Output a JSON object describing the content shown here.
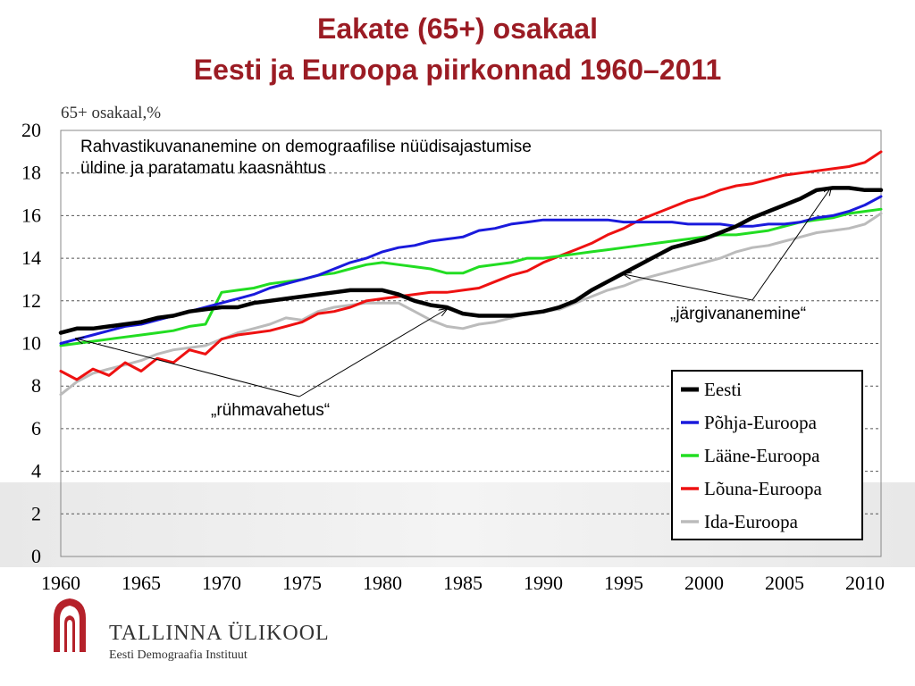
{
  "slide": {
    "title_line1": "Eakate (65+) osakaal",
    "title_line2": "Eesti ja Euroopa piirkonnad  1960–2011"
  },
  "footer": {
    "institution": "TALLINNA ÜLIKOOL",
    "department": "Eesti Demograafia Instituut",
    "logo_icon": "university-arch-logo"
  },
  "chart_data": {
    "type": "line",
    "ylabel": "65+ osakaal,%",
    "xlim": [
      1960,
      2011
    ],
    "ylim": [
      0,
      20
    ],
    "x_ticks": [
      1960,
      1965,
      1970,
      1975,
      1980,
      1985,
      1990,
      1995,
      2000,
      2005,
      2010
    ],
    "y_ticks": [
      0,
      2,
      4,
      6,
      8,
      10,
      12,
      14,
      16,
      18,
      20
    ],
    "grid": "horizontal-dashed",
    "legend_position": "bottom-right",
    "annotations": {
      "note": "Rahvastikuvananemine on demograafilise nüüdisajastumise üldine ja paratamatu kaasnähtus",
      "group_change": "„rühmavahetus“",
      "catch_up": "„järgivananemine“"
    },
    "series": [
      {
        "name": "Eesti",
        "color": "#000000",
        "x": [
          1960,
          1961,
          1962,
          1963,
          1964,
          1965,
          1966,
          1967,
          1968,
          1969,
          1970,
          1971,
          1972,
          1973,
          1974,
          1975,
          1976,
          1977,
          1978,
          1979,
          1980,
          1981,
          1982,
          1983,
          1984,
          1985,
          1986,
          1987,
          1988,
          1989,
          1990,
          1991,
          1992,
          1993,
          1994,
          1995,
          1996,
          1997,
          1998,
          1999,
          2000,
          2001,
          2002,
          2003,
          2004,
          2005,
          2006,
          2007,
          2008,
          2009,
          2010,
          2011
        ],
        "y": [
          10.5,
          10.7,
          10.7,
          10.8,
          10.9,
          11.0,
          11.2,
          11.3,
          11.5,
          11.6,
          11.7,
          11.7,
          11.9,
          12.0,
          12.1,
          12.2,
          12.3,
          12.4,
          12.5,
          12.5,
          12.5,
          12.3,
          12.0,
          11.8,
          11.7,
          11.4,
          11.3,
          11.3,
          11.3,
          11.4,
          11.5,
          11.7,
          12.0,
          12.5,
          12.9,
          13.3,
          13.7,
          14.1,
          14.5,
          14.7,
          14.9,
          15.2,
          15.5,
          15.9,
          16.2,
          16.5,
          16.8,
          17.2,
          17.3,
          17.3,
          17.2,
          17.2
        ]
      },
      {
        "name": "Põhja-Euroopa",
        "color": "#1a1adc",
        "x": [
          1960,
          1961,
          1962,
          1963,
          1964,
          1965,
          1966,
          1967,
          1968,
          1969,
          1970,
          1971,
          1972,
          1973,
          1974,
          1975,
          1976,
          1977,
          1978,
          1979,
          1980,
          1981,
          1982,
          1983,
          1984,
          1985,
          1986,
          1987,
          1988,
          1989,
          1990,
          1991,
          1992,
          1993,
          1994,
          1995,
          1996,
          1997,
          1998,
          1999,
          2000,
          2001,
          2002,
          2003,
          2004,
          2005,
          2006,
          2007,
          2008,
          2009,
          2010,
          2011
        ],
        "y": [
          10.0,
          10.2,
          10.4,
          10.6,
          10.8,
          10.9,
          11.1,
          11.3,
          11.5,
          11.7,
          11.9,
          12.1,
          12.3,
          12.6,
          12.8,
          13.0,
          13.2,
          13.5,
          13.8,
          14.0,
          14.3,
          14.5,
          14.6,
          14.8,
          14.9,
          15.0,
          15.3,
          15.4,
          15.6,
          15.7,
          15.8,
          15.8,
          15.8,
          15.8,
          15.8,
          15.7,
          15.7,
          15.7,
          15.7,
          15.6,
          15.6,
          15.6,
          15.5,
          15.5,
          15.6,
          15.6,
          15.7,
          15.9,
          16.0,
          16.2,
          16.5,
          16.9
        ]
      },
      {
        "name": "Lääne-Euroopa",
        "color": "#22dd22",
        "x": [
          1960,
          1961,
          1962,
          1963,
          1964,
          1965,
          1966,
          1967,
          1968,
          1969,
          1970,
          1971,
          1972,
          1973,
          1974,
          1975,
          1976,
          1977,
          1978,
          1979,
          1980,
          1981,
          1982,
          1983,
          1984,
          1985,
          1986,
          1987,
          1988,
          1989,
          1990,
          1991,
          1992,
          1993,
          1994,
          1995,
          1996,
          1997,
          1998,
          1999,
          2000,
          2001,
          2002,
          2003,
          2004,
          2005,
          2006,
          2007,
          2008,
          2009,
          2010,
          2011
        ],
        "y": [
          9.9,
          10.0,
          10.1,
          10.2,
          10.3,
          10.4,
          10.5,
          10.6,
          10.8,
          10.9,
          12.4,
          12.5,
          12.6,
          12.8,
          12.9,
          13.0,
          13.2,
          13.3,
          13.5,
          13.7,
          13.8,
          13.7,
          13.6,
          13.5,
          13.3,
          13.3,
          13.6,
          13.7,
          13.8,
          14.0,
          14.0,
          14.1,
          14.2,
          14.3,
          14.4,
          14.5,
          14.6,
          14.7,
          14.8,
          14.9,
          15.0,
          15.1,
          15.1,
          15.2,
          15.3,
          15.5,
          15.7,
          15.8,
          15.9,
          16.1,
          16.2,
          16.3
        ]
      },
      {
        "name": "Lõuna-Euroopa",
        "color": "#ee1111",
        "x": [
          1960,
          1961,
          1962,
          1963,
          1964,
          1965,
          1966,
          1967,
          1968,
          1969,
          1970,
          1971,
          1972,
          1973,
          1974,
          1975,
          1976,
          1977,
          1978,
          1979,
          1980,
          1981,
          1982,
          1983,
          1984,
          1985,
          1986,
          1987,
          1988,
          1989,
          1990,
          1991,
          1992,
          1993,
          1994,
          1995,
          1996,
          1997,
          1998,
          1999,
          2000,
          2001,
          2002,
          2003,
          2004,
          2005,
          2006,
          2007,
          2008,
          2009,
          2010,
          2011
        ],
        "y": [
          8.7,
          8.3,
          8.8,
          8.5,
          9.1,
          8.7,
          9.3,
          9.1,
          9.7,
          9.5,
          10.2,
          10.4,
          10.5,
          10.6,
          10.8,
          11.0,
          11.4,
          11.5,
          11.7,
          12.0,
          12.1,
          12.2,
          12.3,
          12.4,
          12.4,
          12.5,
          12.6,
          12.9,
          13.2,
          13.4,
          13.8,
          14.1,
          14.4,
          14.7,
          15.1,
          15.4,
          15.8,
          16.1,
          16.4,
          16.7,
          16.9,
          17.2,
          17.4,
          17.5,
          17.7,
          17.9,
          18.0,
          18.1,
          18.2,
          18.3,
          18.5,
          19.0
        ]
      },
      {
        "name": "Ida-Euroopa",
        "color": "#bbbbbb",
        "x": [
          1960,
          1961,
          1962,
          1963,
          1964,
          1965,
          1966,
          1967,
          1968,
          1969,
          1970,
          1971,
          1972,
          1973,
          1974,
          1975,
          1976,
          1977,
          1978,
          1979,
          1980,
          1981,
          1982,
          1983,
          1984,
          1985,
          1986,
          1987,
          1988,
          1989,
          1990,
          1991,
          1992,
          1993,
          1994,
          1995,
          1996,
          1997,
          1998,
          1999,
          2000,
          2001,
          2002,
          2003,
          2004,
          2005,
          2006,
          2007,
          2008,
          2009,
          2010,
          2011
        ],
        "y": [
          7.6,
          8.2,
          8.6,
          8.8,
          9.0,
          9.2,
          9.5,
          9.7,
          9.8,
          9.9,
          10.2,
          10.5,
          10.7,
          10.9,
          11.2,
          11.1,
          11.5,
          11.7,
          11.8,
          11.9,
          11.9,
          11.9,
          11.5,
          11.1,
          10.8,
          10.7,
          10.9,
          11.0,
          11.2,
          11.4,
          11.5,
          11.6,
          11.9,
          12.2,
          12.5,
          12.7,
          13.0,
          13.2,
          13.4,
          13.6,
          13.8,
          14.0,
          14.3,
          14.5,
          14.6,
          14.8,
          15.0,
          15.2,
          15.3,
          15.4,
          15.6,
          16.1
        ]
      }
    ]
  }
}
